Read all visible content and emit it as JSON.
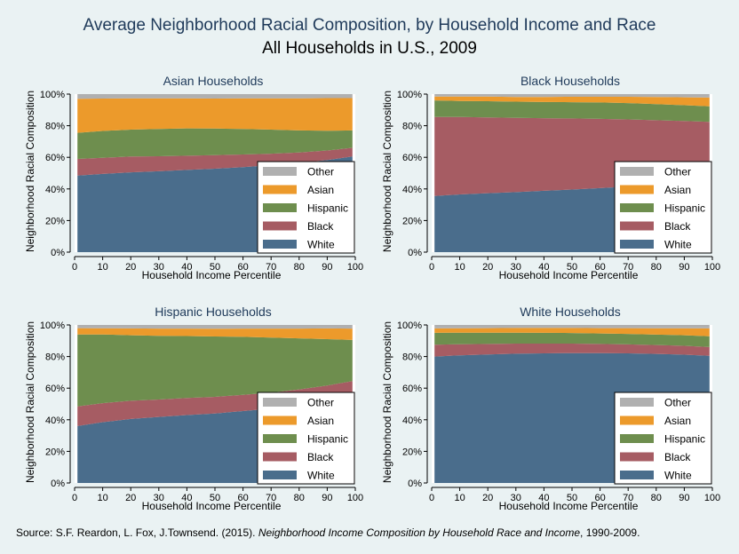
{
  "header": {
    "title": "Average Neighborhood Racial Composition, by Household Income and Race",
    "subtitle": "All Households in U.S., 2009"
  },
  "source": {
    "prefix": "Source: S.F. Reardon, L. Fox, J.Townsend. (2015). ",
    "italic": "Neighborhood Income Composition by Household Race and Income",
    "suffix": ", 1990-2009."
  },
  "colors": {
    "White": "#4a6d8c",
    "Black": "#a65c63",
    "Hispanic": "#6e8e4e",
    "Asian": "#ec9a2b",
    "Other": "#b0b0b0"
  },
  "legend_labels": [
    "Other",
    "Asian",
    "Hispanic",
    "Black",
    "White"
  ],
  "chart_data": [
    {
      "type": "area",
      "stacked": true,
      "title": "Asian Households",
      "xlabel": "Household Income Percentile",
      "ylabel": "Neighborhood Racial Composition",
      "xlim": [
        0,
        100
      ],
      "ylim": [
        0,
        100
      ],
      "xticks": [
        0,
        10,
        20,
        30,
        40,
        50,
        60,
        70,
        80,
        90,
        100
      ],
      "yticks": [
        "0%",
        "20%",
        "40%",
        "60%",
        "80%",
        "100%"
      ],
      "legend": "bottom-right",
      "x": [
        1,
        10,
        20,
        30,
        40,
        50,
        60,
        70,
        80,
        90,
        99
      ],
      "series": [
        {
          "name": "White",
          "values": [
            48.5,
            49.5,
            50.5,
            51.2,
            52,
            52.8,
            53.8,
            55,
            56.5,
            58.3,
            60.5
          ]
        },
        {
          "name": "Black",
          "values": [
            10.5,
            10.2,
            10,
            9.5,
            9,
            8.6,
            8,
            7.3,
            6.6,
            6,
            5.5
          ]
        },
        {
          "name": "Hispanic",
          "values": [
            16.5,
            17,
            17,
            17.3,
            17.3,
            16.8,
            16.2,
            15.2,
            13.9,
            12.5,
            11
          ]
        },
        {
          "name": "Asian",
          "values": [
            21.5,
            20.5,
            19.8,
            19.3,
            19,
            19,
            19.3,
            19.8,
            20.3,
            20.7,
            20.5
          ]
        },
        {
          "name": "Other",
          "values": [
            3,
            2.8,
            2.7,
            2.7,
            2.7,
            2.8,
            2.7,
            2.7,
            2.7,
            2.5,
            2.5
          ]
        }
      ]
    },
    {
      "type": "area",
      "stacked": true,
      "title": "Black Households",
      "xlabel": "Household Income Percentile",
      "ylabel": "Neighborhood Racial Composition",
      "xlim": [
        0,
        100
      ],
      "ylim": [
        0,
        100
      ],
      "xticks": [
        0,
        10,
        20,
        30,
        40,
        50,
        60,
        70,
        80,
        90,
        100
      ],
      "yticks": [
        "0%",
        "20%",
        "40%",
        "60%",
        "80%",
        "100%"
      ],
      "legend": "bottom-right",
      "x": [
        1,
        10,
        20,
        30,
        40,
        50,
        60,
        70,
        80,
        90,
        99
      ],
      "series": [
        {
          "name": "White",
          "values": [
            35.5,
            36.5,
            37.3,
            38,
            38.8,
            39.6,
            40.5,
            41.5,
            42.8,
            44,
            45.5
          ]
        },
        {
          "name": "Black",
          "values": [
            50,
            49,
            48,
            47,
            46,
            45,
            43.8,
            42.5,
            40.7,
            39,
            37
          ]
        },
        {
          "name": "Hispanic",
          "values": [
            10.5,
            10.2,
            10.2,
            10.2,
            10.2,
            10.3,
            10.4,
            10.3,
            10.2,
            10,
            9.8
          ]
        },
        {
          "name": "Asian",
          "values": [
            2.5,
            2.8,
            2.9,
            3,
            3.2,
            3.4,
            3.6,
            4,
            4.5,
            5,
            5.5
          ]
        },
        {
          "name": "Other",
          "values": [
            1.5,
            1.5,
            1.6,
            1.8,
            1.8,
            1.7,
            1.7,
            1.7,
            1.8,
            2,
            2.2
          ]
        }
      ]
    },
    {
      "type": "area",
      "stacked": true,
      "title": "Hispanic Households",
      "xlabel": "Household Income Percentile",
      "ylabel": "Neighborhood Racial Composition",
      "xlim": [
        0,
        100
      ],
      "ylim": [
        0,
        100
      ],
      "xticks": [
        0,
        10,
        20,
        30,
        40,
        50,
        60,
        70,
        80,
        90,
        100
      ],
      "yticks": [
        "0%",
        "20%",
        "40%",
        "60%",
        "80%",
        "100%"
      ],
      "legend": "bottom-right",
      "x": [
        1,
        10,
        20,
        30,
        40,
        50,
        60,
        70,
        80,
        90,
        99
      ],
      "series": [
        {
          "name": "White",
          "values": [
            36,
            38.5,
            40.5,
            41.8,
            43,
            44,
            45.5,
            47,
            49,
            51.5,
            54
          ]
        },
        {
          "name": "Black",
          "values": [
            12.5,
            12,
            11.5,
            11,
            10.8,
            10.5,
            10.3,
            10.2,
            10.2,
            10.2,
            10.5
          ]
        },
        {
          "name": "Hispanic",
          "values": [
            45.5,
            43.5,
            41.5,
            40.3,
            39.2,
            38.2,
            36.7,
            34.8,
            32.3,
            29.3,
            26
          ]
        },
        {
          "name": "Asian",
          "values": [
            4,
            3.9,
            4.3,
            4.6,
            4.7,
            4.9,
            5.2,
            5.7,
            6.2,
            6.8,
            7.2
          ]
        },
        {
          "name": "Other",
          "values": [
            2,
            2.1,
            2.2,
            2.3,
            2.3,
            2.4,
            2.3,
            2.3,
            2.3,
            2.2,
            2.3
          ]
        }
      ]
    },
    {
      "type": "area",
      "stacked": true,
      "title": "White Households",
      "xlabel": "Household Income Percentile",
      "ylabel": "Neighborhood Racial Composition",
      "xlim": [
        0,
        100
      ],
      "ylim": [
        0,
        100
      ],
      "xticks": [
        0,
        10,
        20,
        30,
        40,
        50,
        60,
        70,
        80,
        90,
        100
      ],
      "yticks": [
        "0%",
        "20%",
        "40%",
        "60%",
        "80%",
        "100%"
      ],
      "legend": "bottom-right",
      "x": [
        1,
        10,
        20,
        30,
        40,
        50,
        60,
        70,
        80,
        90,
        99
      ],
      "series": [
        {
          "name": "White",
          "values": [
            80,
            80.8,
            81.3,
            81.8,
            82,
            82.2,
            82.2,
            82,
            81.7,
            81.2,
            80.5
          ]
        },
        {
          "name": "Black",
          "values": [
            7.5,
            7,
            6.7,
            6.4,
            6.2,
            6,
            5.8,
            5.7,
            5.6,
            5.6,
            5.5
          ]
        },
        {
          "name": "Hispanic",
          "values": [
            7.5,
            7.3,
            7.1,
            6.9,
            6.8,
            6.7,
            6.6,
            6.6,
            6.6,
            6.7,
            6.8
          ]
        },
        {
          "name": "Asian",
          "values": [
            2.8,
            2.8,
            2.9,
            3,
            3.1,
            3.2,
            3.4,
            3.7,
            4,
            4.4,
            5
          ]
        },
        {
          "name": "Other",
          "values": [
            2.2,
            2.1,
            2,
            1.9,
            1.9,
            1.9,
            2,
            2,
            2.1,
            2.1,
            2.2
          ]
        }
      ]
    }
  ]
}
